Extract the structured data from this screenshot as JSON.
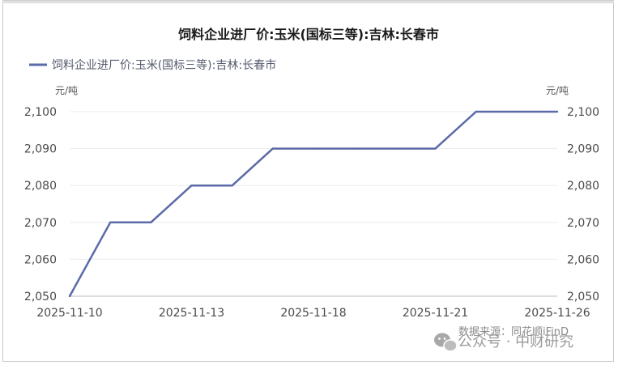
{
  "chart_data": {
    "type": "line",
    "title": "饲料企业进厂价:玉米(国标三等):吉林:长春市",
    "series": [
      {
        "name": "饲料企业进厂价:玉米(国标三等):吉林:长春市",
        "color": "#5b6aa8",
        "points": [
          [
            "2025-11-10",
            2050
          ],
          [
            "2025-11-11",
            2070
          ],
          [
            "2025-11-12",
            2070
          ],
          [
            "2025-11-13",
            2080
          ],
          [
            "2025-11-14",
            2080
          ],
          [
            "2025-11-17",
            2090
          ],
          [
            "2025-11-18",
            2090
          ],
          [
            "2025-11-19",
            2090
          ],
          [
            "2025-11-20",
            2090
          ],
          [
            "2025-11-21",
            2090
          ],
          [
            "2025-11-24",
            2100
          ],
          [
            "2025-11-25",
            2100
          ],
          [
            "2025-11-26",
            2100
          ]
        ]
      }
    ],
    "x_tick_labels": [
      "2025-11-10",
      "2025-11-13",
      "2025-11-18",
      "2025-11-21",
      "2025-11-26"
    ],
    "y_ticks": [
      "2,050",
      "2,060",
      "2,070",
      "2,080",
      "2,090",
      "2,100"
    ],
    "ylim": [
      2050,
      2100
    ],
    "ylabel_left": "元/吨",
    "ylabel_right": "元/吨",
    "grid": "horizontal",
    "legend_position": "top-left",
    "source": "数据来源：同花顺iFinD"
  },
  "watermark": {
    "text": "公众号 · 中财研究",
    "icon": "wechat-icon"
  }
}
